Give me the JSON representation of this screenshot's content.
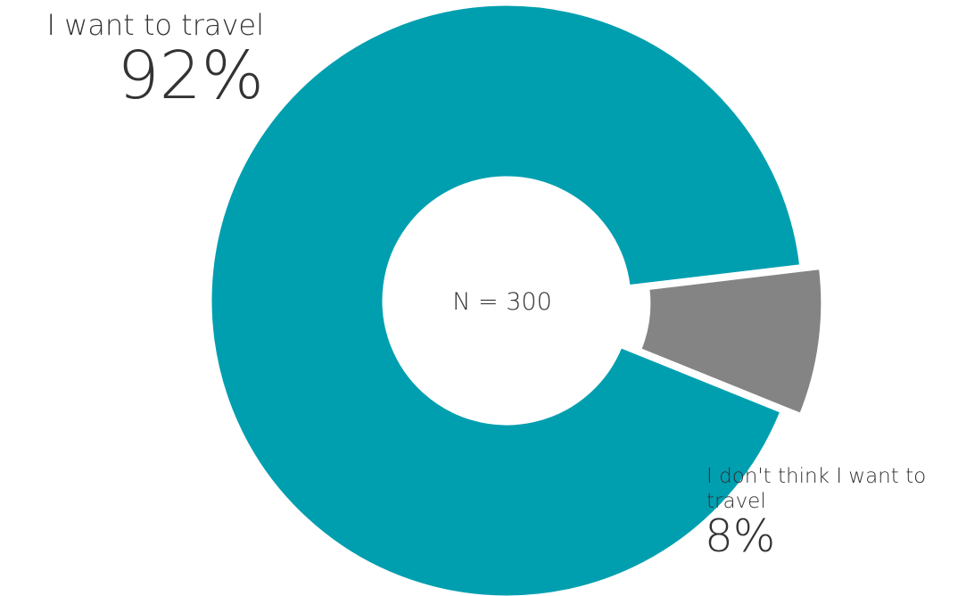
{
  "chart_data": {
    "type": "pie",
    "donut": true,
    "center_text": "N = 300",
    "categories": [
      "I want to travel",
      "I don't think I want to travel"
    ],
    "values": [
      92,
      8
    ],
    "value_labels": [
      "92%",
      "8%"
    ],
    "colors": [
      "#009fb0",
      "#848484"
    ],
    "exploded_slice": "I don't think I want to travel"
  }
}
